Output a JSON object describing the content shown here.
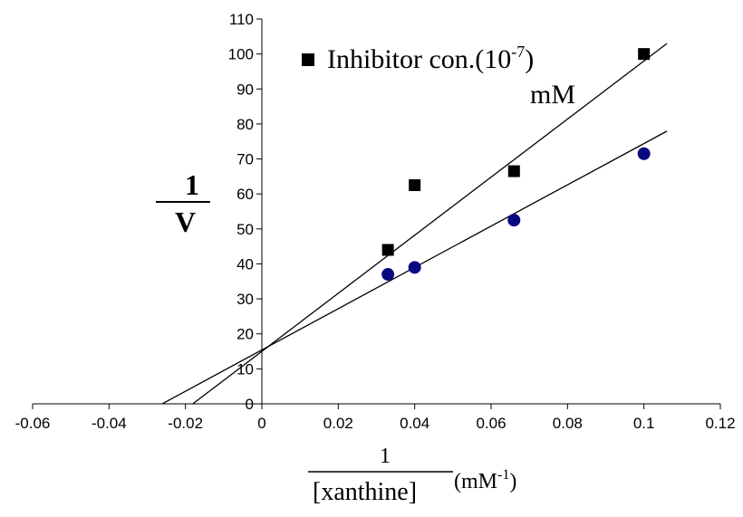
{
  "chart_data": {
    "type": "scatter",
    "xlim": [
      -0.06,
      0.12
    ],
    "ylim": [
      0,
      110
    ],
    "x_ticks": [
      -0.06,
      -0.04,
      -0.02,
      0,
      0.02,
      0.04,
      0.06,
      0.08,
      0.1,
      0.12
    ],
    "y_ticks": [
      0,
      10,
      20,
      30,
      40,
      50,
      60,
      70,
      80,
      90,
      100,
      110
    ],
    "x_tick_labels": [
      "-0.06",
      "-0.04",
      "-0.02",
      "0",
      "0.02",
      "0.04",
      "0.06",
      "0.08",
      "0.1",
      "0.12"
    ],
    "y_tick_labels": [
      "0",
      "10",
      "20",
      "30",
      "40",
      "50",
      "60",
      "70",
      "80",
      "90",
      "100",
      "110"
    ],
    "xlabel": {
      "numerator": "1",
      "denominator": "[xanthine]",
      "unit_base": "(mM",
      "unit_exp": "-1",
      "unit_close": ")"
    },
    "ylabel": {
      "numerator": "1",
      "denominator": "V"
    },
    "legend": {
      "placement": "top-center",
      "text_main": "Inhibitor con.(10",
      "text_exp": "-7",
      "text_close": ")",
      "text_line2": "mM"
    },
    "series": [
      {
        "name": "Inhibitor con.(10-7) mM",
        "marker": "square",
        "color": "#000000",
        "x": [
          0.033,
          0.04,
          0.066,
          0.1
        ],
        "y": [
          44,
          62.5,
          66.5,
          100
        ],
        "fit": {
          "x0": -0.018,
          "x1": 0.106,
          "slope": 830,
          "intercept": 15
        }
      },
      {
        "marker": "circle",
        "color": "#0a0a80",
        "x": [
          0.033,
          0.04,
          0.066,
          0.1
        ],
        "y": [
          37,
          39,
          52.5,
          71.5
        ],
        "fit": {
          "x0": -0.026,
          "x1": 0.106,
          "slope": 590,
          "intercept": 15.4
        }
      }
    ]
  }
}
